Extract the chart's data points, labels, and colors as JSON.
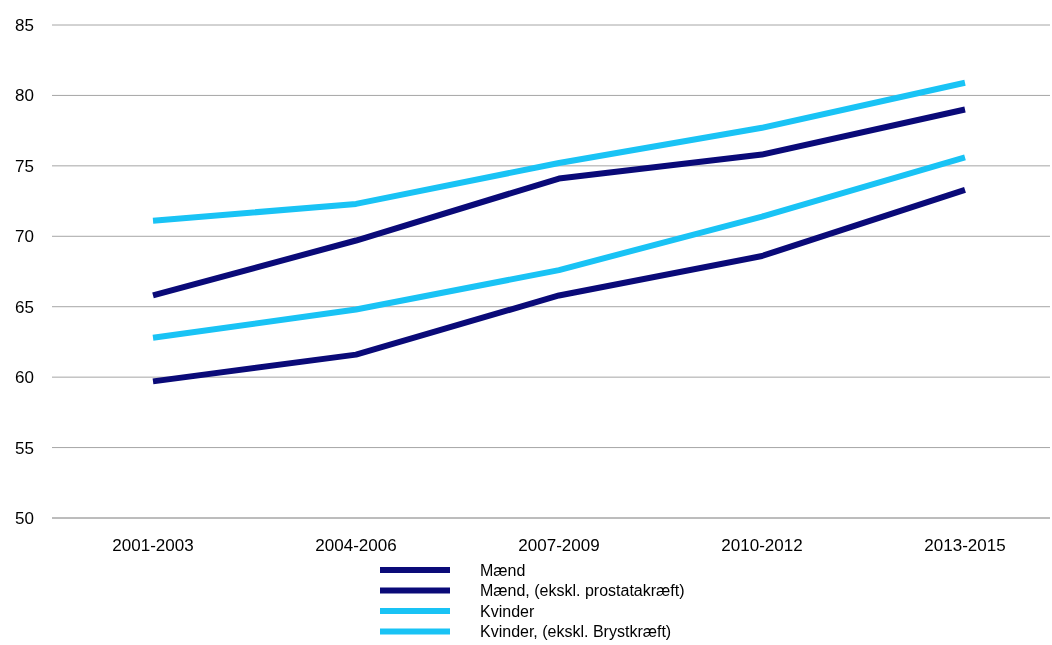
{
  "chart_data": {
    "type": "line",
    "categories": [
      "2001-2003",
      "2004-2006",
      "2007-2009",
      "2010-2012",
      "2013-2015"
    ],
    "series": [
      {
        "name": "Mænd",
        "color": "#0a0a78",
        "values": [
          65.8,
          69.7,
          74.1,
          75.8,
          79.0
        ]
      },
      {
        "name": "Mænd, (ekskl. prostatakræft)",
        "color": "#0a0a78",
        "values": [
          59.7,
          61.6,
          65.8,
          68.6,
          73.3
        ]
      },
      {
        "name": "Kvinder",
        "color": "#19c3f5",
        "values": [
          71.1,
          72.3,
          75.2,
          77.7,
          80.9
        ]
      },
      {
        "name": "Kvinder, (ekskl. Brystkræft)",
        "color": "#19c3f5",
        "values": [
          62.8,
          64.8,
          67.6,
          71.4,
          75.6
        ]
      }
    ],
    "ylim": [
      50,
      85
    ],
    "yticks": [
      50,
      55,
      60,
      65,
      70,
      75,
      80,
      85
    ],
    "grid": "y",
    "legend": "bottom",
    "marker": "none",
    "line_style": "solid"
  }
}
